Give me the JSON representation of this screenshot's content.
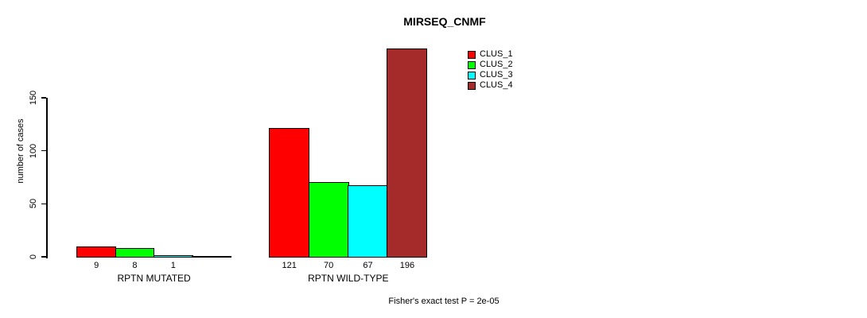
{
  "chart_data": {
    "type": "bar",
    "title": "MIRSEQ_CNMF",
    "ylabel": "number of cases",
    "xlabel": "",
    "yticks": [
      0,
      50,
      100,
      150
    ],
    "ylim": [
      0,
      200
    ],
    "grid": false,
    "legend_position": "top-right",
    "background": "#ffffff",
    "axis_color": "#000000",
    "series_colors": [
      "#ff0000",
      "#00ff00",
      "#00ffff",
      "#a52a2a"
    ],
    "legend": [
      {
        "label": "CLUS_1",
        "color": "#ff0000"
      },
      {
        "label": "CLUS_2",
        "color": "#00ff00"
      },
      {
        "label": "CLUS_3",
        "color": "#00ffff"
      },
      {
        "label": "CLUS_4",
        "color": "#a52a2a"
      }
    ],
    "groups": [
      {
        "label": "RPTN MUTATED",
        "values": [
          9,
          8,
          1,
          0
        ],
        "bar_labels": [
          "9",
          "8",
          "1",
          ""
        ]
      },
      {
        "label": "RPTN WILD-TYPE",
        "values": [
          121,
          70,
          67,
          196
        ],
        "bar_labels": [
          "121",
          "70",
          "67",
          "196"
        ]
      }
    ],
    "annotation": "Fisher's exact test P = 2e-05"
  }
}
